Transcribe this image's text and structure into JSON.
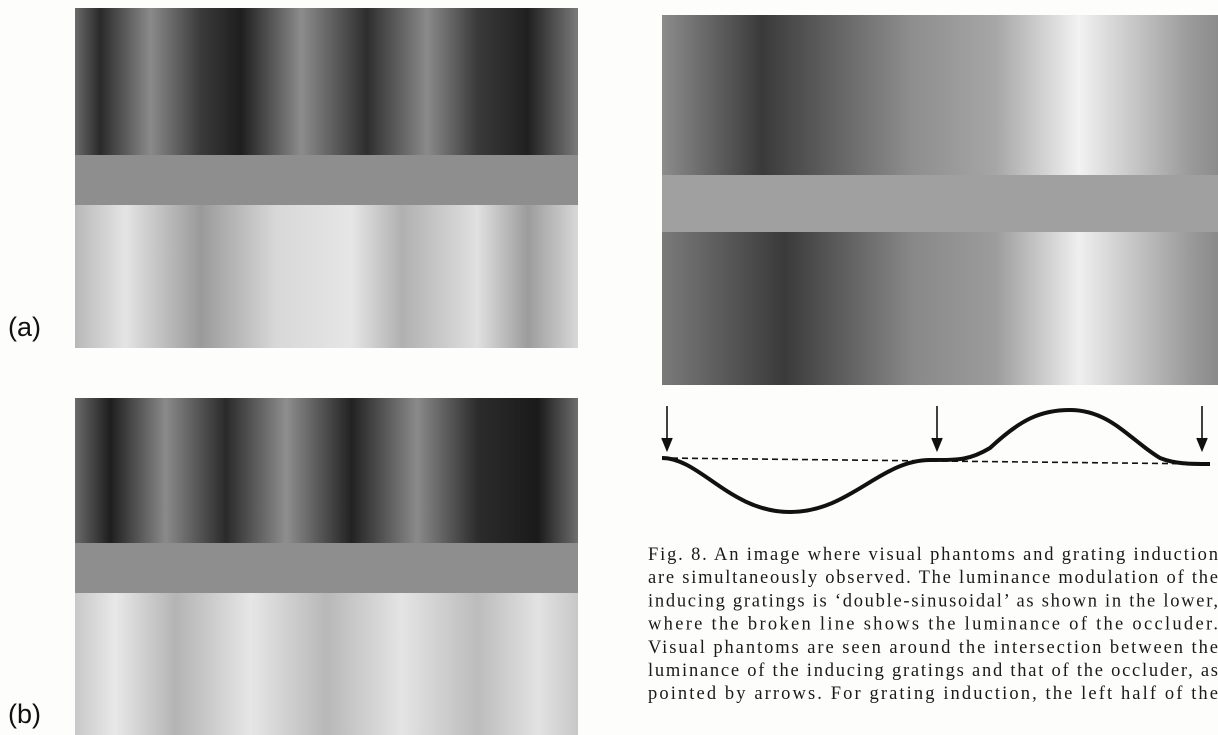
{
  "figure_labels": {
    "a": "(a)",
    "b": "(b)"
  },
  "caption": {
    "lines": [
      "Fig. 8.  An image where visual phantoms and grating induction",
      "are simultaneously observed. The luminance modulation of the",
      "inducing gratings is ‘double-sinusoidal’ as shown in the lower,",
      "where the broken line shows the luminance of the occluder.",
      "Visual phantoms are seen around the intersection between the",
      "luminance of the inducing gratings and that of the occluder, as",
      "pointed by arrows. For grating induction, the left half of the"
    ]
  }
}
